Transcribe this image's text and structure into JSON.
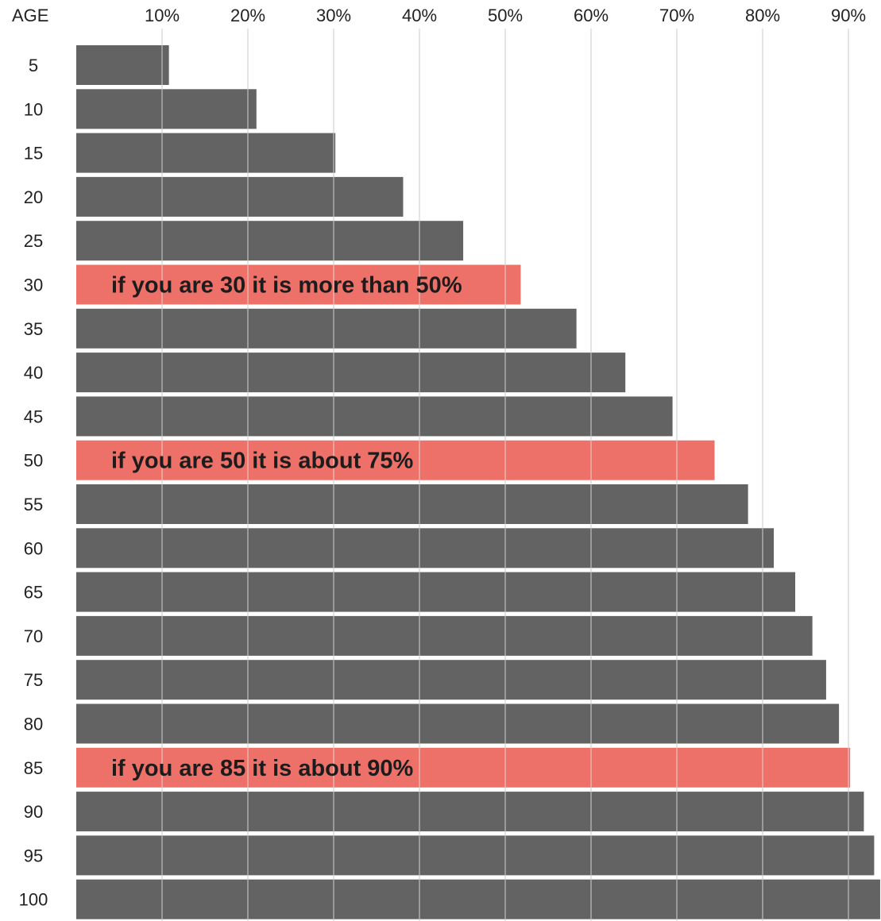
{
  "chart_data": {
    "type": "bar",
    "orientation": "horizontal",
    "title": "",
    "xlabel": "",
    "ylabel": "AGE",
    "categories": [
      "5",
      "10",
      "15",
      "20",
      "25",
      "30",
      "35",
      "40",
      "45",
      "50",
      "55",
      "60",
      "65",
      "70",
      "75",
      "80",
      "85",
      "90",
      "95",
      "100"
    ],
    "series": [
      {
        "values": [
          10.8,
          21.0,
          30.2,
          38.1,
          45.1,
          51.8,
          58.3,
          64.0,
          69.5,
          74.4,
          78.3,
          81.3,
          83.8,
          85.8,
          87.4,
          88.9,
          90.2,
          91.8,
          93.0,
          93.7
        ]
      }
    ],
    "x_ticks": [
      "10%",
      "20%",
      "30%",
      "40%",
      "50%",
      "60%",
      "70%",
      "80%",
      "90%"
    ],
    "x_tick_values": [
      10,
      20,
      30,
      40,
      50,
      60,
      70,
      80,
      90
    ],
    "xlim": [
      0,
      93.7
    ],
    "grid": true,
    "x_axis_position": "top",
    "colors": {
      "bar": "#636363",
      "highlight": "#ee7169",
      "grid": "#dcdcdc",
      "bar_grid": "#ebebeb"
    },
    "highlights": [
      {
        "category": "30",
        "text": "if you are 30 it is more than 50%"
      },
      {
        "category": "50",
        "text": "if you are 50 it is about 75%"
      },
      {
        "category": "85",
        "text": "if you are 85 it is about 90%"
      }
    ]
  }
}
